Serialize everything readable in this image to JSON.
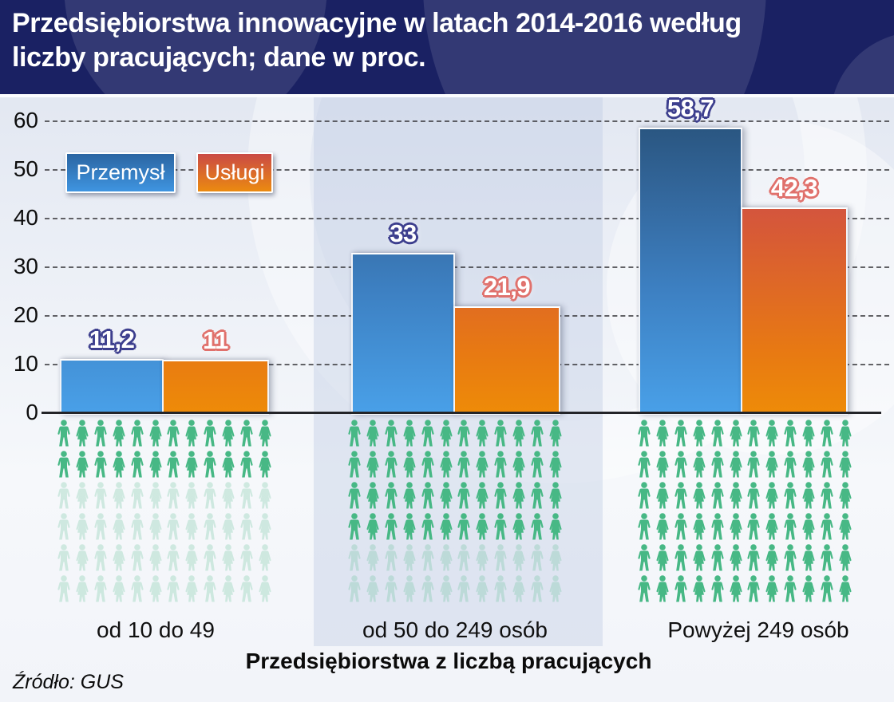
{
  "header": {
    "title_line1": "Przedsiębiorstwa innowacyjne w latach 2014-2016 według",
    "title_line2": "liczby pracujących; dane w proc."
  },
  "legend": [
    {
      "label": "Przemysł",
      "color": "#3f94e0"
    },
    {
      "label": "Usługi",
      "color": "#eb8a10"
    }
  ],
  "chart_data": {
    "type": "bar",
    "title": "Przedsiębiorstwa innowacyjne w latach 2014-2016 według liczby pracujących; dane w proc.",
    "categories": [
      "od 10 do 49",
      "od 50 do 249 osób",
      "Powyżej 249 osób"
    ],
    "series": [
      {
        "name": "Przemysł",
        "values": [
          11.2,
          33,
          58.7
        ],
        "labels": [
          "11,2",
          "33",
          "58,7"
        ],
        "color_top": "#29547e",
        "color_bottom": "#49a0e8"
      },
      {
        "name": "Usługi",
        "values": [
          11,
          21.9,
          42.3
        ],
        "labels": [
          "11",
          "21,9",
          "42,3"
        ],
        "color_top": "#c8445c",
        "color_bottom": "#ee8b08"
      }
    ],
    "xlabel": "Przedsiębiorstwa z liczbą pracujących",
    "ylabel": "",
    "ylim": [
      0,
      60
    ],
    "yticks": [
      0,
      10,
      20,
      30,
      40,
      50,
      60
    ],
    "grid": "dashed-horizontal",
    "legend_position": "top-left",
    "pictogram": {
      "rows": 6,
      "cols": 12,
      "solid_rows_per_group": [
        2,
        4,
        6
      ],
      "color": "#47b885",
      "faded_opacity": 0.22
    }
  },
  "source": "Źródło: GUS"
}
